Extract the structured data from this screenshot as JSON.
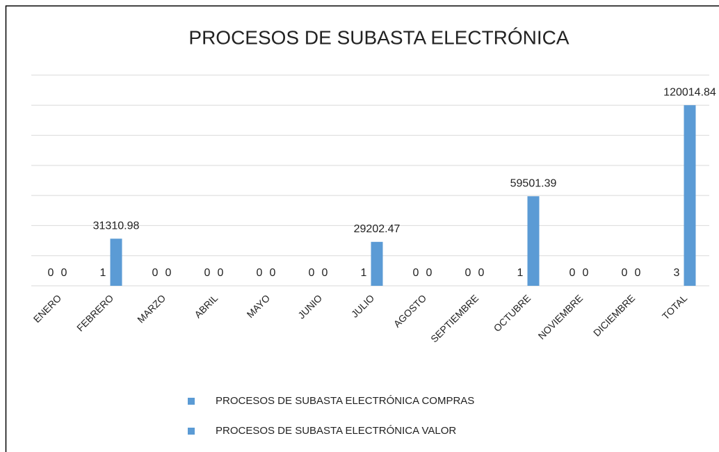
{
  "chart_data": {
    "type": "bar",
    "title": "PROCESOS DE SUBASTA ELECTRÓNICA",
    "categories": [
      "ENERO",
      "FEBRERO",
      "MARZO",
      "ABRIL",
      "MAYO",
      "JUNIO",
      "JULIO",
      "AGOSTO",
      "SEPTIEMBRE",
      "OCTUBRE",
      "NOVIEMBRE",
      "DICIEMBRE",
      "TOTAL"
    ],
    "series": [
      {
        "name": "PROCESOS DE SUBASTA ELECTRÓNICA COMPRAS",
        "color": "#5b9bd5",
        "values": [
          0,
          1,
          0,
          0,
          0,
          0,
          1,
          0,
          0,
          1,
          0,
          0,
          3
        ]
      },
      {
        "name": "PROCESOS DE SUBASTA ELECTRÓNICA VALOR",
        "color": "#5b9bd5",
        "values": [
          0,
          31310.98,
          0,
          0,
          0,
          0,
          29202.47,
          0,
          0,
          59501.39,
          0,
          0,
          120014.84
        ]
      }
    ],
    "ylim": [
      0,
      140000
    ],
    "yticks": [
      0,
      20000,
      40000,
      60000,
      80000,
      100000,
      120000,
      140000
    ],
    "grid": true,
    "legend": "bottom"
  }
}
